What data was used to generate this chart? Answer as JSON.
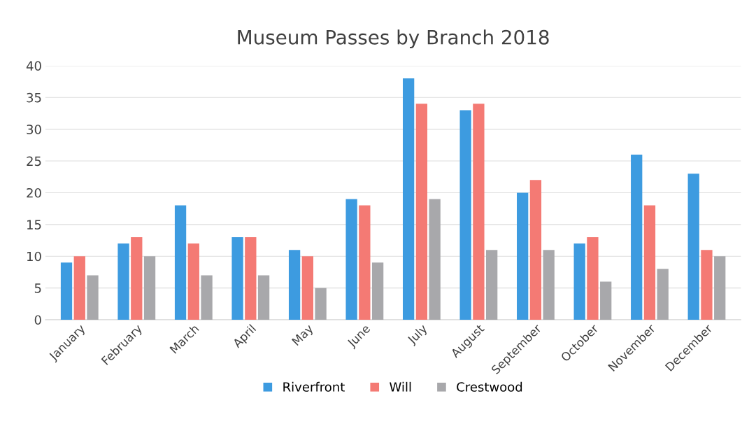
{
  "chart_data": {
    "type": "bar",
    "title": "Museum Passes by Branch 2018",
    "categories": [
      "January",
      "February",
      "March",
      "April",
      "May",
      "June",
      "July",
      "August",
      "September",
      "October",
      "November",
      "December"
    ],
    "series": [
      {
        "name": "Riverfront",
        "color": "#3d9be0",
        "values": [
          9,
          12,
          18,
          13,
          11,
          19,
          38,
          33,
          20,
          12,
          26,
          23
        ]
      },
      {
        "name": "Will",
        "color": "#f47a74",
        "values": [
          10,
          13,
          12,
          13,
          10,
          18,
          34,
          34,
          22,
          13,
          18,
          11
        ]
      },
      {
        "name": "Crestwood",
        "color": "#a8a8ab",
        "values": [
          7,
          10,
          7,
          7,
          5,
          9,
          19,
          11,
          11,
          6,
          8,
          10
        ]
      }
    ],
    "ylim": [
      0,
      40
    ],
    "yticks": [
      0,
      5,
      10,
      15,
      20,
      25,
      30,
      35,
      40
    ],
    "grid": "y",
    "legend": "bottom"
  }
}
